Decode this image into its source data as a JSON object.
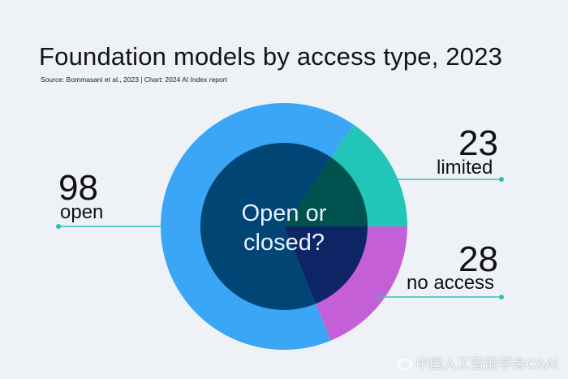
{
  "title": "Foundation models by access type, 2023",
  "source": "Source: Bommasani et al., 2023 | Chart: 2024 AI Index report",
  "center_text_line1": "Open or",
  "center_text_line2": "closed?",
  "watermark": "中国人工智能学会CAAI",
  "colors": {
    "open": "#3aa6f5",
    "limited": "#22c6b8",
    "no_access": "#c55fd8",
    "inner_open": "#004574",
    "inner_limited": "#00524f",
    "inner_no_access": "#0e2565",
    "background": "#eef1f5"
  },
  "chart_data": {
    "type": "pie",
    "title": "Foundation models by access type, 2023",
    "slices": [
      {
        "label": "open",
        "value": 98
      },
      {
        "label": "limited",
        "value": 23
      },
      {
        "label": "no access",
        "value": 28
      }
    ],
    "legend": "leader-line labels"
  }
}
